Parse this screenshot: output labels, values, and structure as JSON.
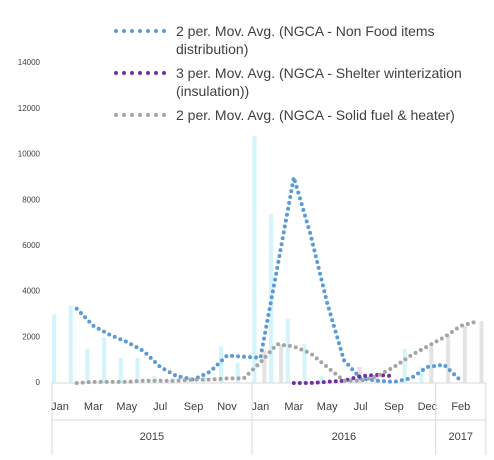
{
  "chart_data": {
    "type": "line",
    "categories": [
      "Jan",
      null,
      "Mar",
      null,
      "May",
      null,
      "Jul",
      null,
      "Sep",
      null,
      "Nov",
      null,
      "Jan",
      null,
      "Mar",
      null,
      "May",
      null,
      "Jul",
      null,
      "Sep",
      null,
      "Dec",
      null,
      "Feb",
      null
    ],
    "groups": [
      {
        "label": "2015",
        "count": 12
      },
      {
        "label": "2016",
        "count": 11
      },
      {
        "label": "2017",
        "count": 3
      }
    ],
    "ylim": [
      0,
      14000
    ],
    "yticks": [
      0,
      2000,
      4000,
      6000,
      8000,
      10000,
      12000,
      14000
    ],
    "bars": [
      {
        "color": "#d2f4fa",
        "values": [
          3000,
          3400,
          1500,
          2000,
          1100,
          1100,
          300,
          100,
          100,
          300,
          1600,
          900,
          10800,
          7400,
          2800,
          1700,
          300,
          100,
          100,
          0,
          0,
          1500,
          700,
          0,
          0,
          0
        ]
      },
      {
        "color": "#e6d9f0",
        "values": [
          0,
          0,
          0,
          0,
          0,
          0,
          0,
          0,
          0,
          0,
          0,
          0,
          0,
          0,
          0,
          0,
          0,
          0,
          700,
          300,
          0,
          0,
          0,
          0,
          0,
          0
        ]
      },
      {
        "color": "#e3e3e3",
        "values": [
          0,
          0,
          0,
          0,
          0,
          0,
          0,
          0,
          0,
          0,
          0,
          0,
          1400,
          1700,
          0,
          0,
          0,
          0,
          0,
          0,
          0,
          0,
          1600,
          2100,
          2500,
          2700
        ]
      }
    ],
    "series": [
      {
        "name": "2 per. Mov. Avg. (NGCA - Non Food items distribution)",
        "color": "#5b9bd5",
        "values": [
          null,
          3250,
          2500,
          2100,
          1800,
          1400,
          700,
          300,
          150,
          500,
          1200,
          1150,
          1100,
          5000,
          9000,
          6500,
          3500,
          1000,
          200,
          100,
          50,
          200,
          700,
          800,
          100,
          null
        ]
      },
      {
        "name": "3 per. Mov. Avg. (NGCA - Shelter winterization (insulation))",
        "color": "#7030a0",
        "values": [
          null,
          null,
          null,
          null,
          null,
          null,
          null,
          null,
          null,
          null,
          null,
          null,
          null,
          null,
          0,
          0,
          50,
          100,
          300,
          350,
          300,
          null,
          null,
          null,
          null,
          null
        ]
      },
      {
        "name": "2 per. Mov. Avg. (NGCA - Solid fuel & heater)",
        "color": "#a5a5a5",
        "values": [
          null,
          0,
          50,
          50,
          50,
          100,
          100,
          100,
          150,
          150,
          200,
          200,
          900,
          1700,
          1600,
          1300,
          700,
          100,
          100,
          300,
          700,
          1200,
          1600,
          2000,
          2500,
          2700
        ]
      }
    ]
  }
}
